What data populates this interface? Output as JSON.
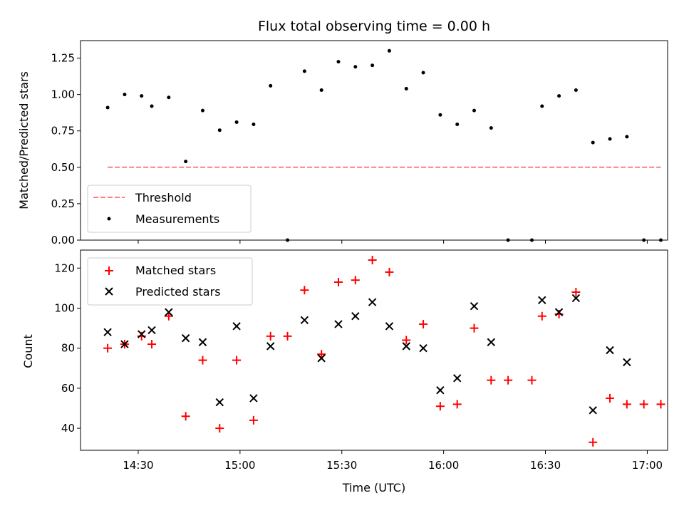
{
  "chart_data": [
    {
      "type": "scatter",
      "title": "Flux total observing time = 0.00 h",
      "xlabel": "",
      "ylabel": "Matched/Predicted stars",
      "xlim": [
        "14:13",
        "17:06"
      ],
      "ylim": [
        0,
        1.37
      ],
      "yticks": [
        "0.00",
        "0.25",
        "0.50",
        "0.75",
        "1.00",
        "1.25"
      ],
      "threshold": {
        "name": "Threshold",
        "value": 0.5,
        "x_start": "14:21",
        "x_end": "17:04",
        "color": "#ff7f7f"
      },
      "series": [
        {
          "name": "Measurements",
          "color": "#000000",
          "points": [
            [
              "14:21",
              0.91
            ],
            [
              "14:26",
              1.0
            ],
            [
              "14:31",
              0.99
            ],
            [
              "14:34",
              0.92
            ],
            [
              "14:39",
              0.98
            ],
            [
              "14:44",
              0.54
            ],
            [
              "14:49",
              0.89
            ],
            [
              "14:54",
              0.755
            ],
            [
              "14:59",
              0.81
            ],
            [
              "15:04",
              0.795
            ],
            [
              "15:09",
              1.06
            ],
            [
              "15:14",
              0.0
            ],
            [
              "15:19",
              1.16
            ],
            [
              "15:24",
              1.03
            ],
            [
              "15:29",
              1.225
            ],
            [
              "15:34",
              1.19
            ],
            [
              "15:39",
              1.2
            ],
            [
              "15:44",
              1.3
            ],
            [
              "15:49",
              1.04
            ],
            [
              "15:54",
              1.15
            ],
            [
              "15:59",
              0.86
            ],
            [
              "16:04",
              0.795
            ],
            [
              "16:09",
              0.89
            ],
            [
              "16:14",
              0.77
            ],
            [
              "16:19",
              0.0
            ],
            [
              "16:26",
              0.0
            ],
            [
              "16:29",
              0.92
            ],
            [
              "16:34",
              0.99
            ],
            [
              "16:39",
              1.03
            ],
            [
              "16:44",
              0.67
            ],
            [
              "16:49",
              0.695
            ],
            [
              "16:54",
              0.71
            ],
            [
              "16:59",
              0.0
            ],
            [
              "17:04",
              0.0
            ]
          ]
        }
      ],
      "legend": [
        "Threshold",
        "Measurements"
      ],
      "legend_position": "lower-left"
    },
    {
      "type": "scatter",
      "title": "",
      "xlabel": "Time (UTC)",
      "ylabel": "Count",
      "xlim": [
        "14:13",
        "17:06"
      ],
      "ylim": [
        29,
        129
      ],
      "xticks": [
        "14:30",
        "15:00",
        "15:30",
        "16:00",
        "16:30",
        "17:00"
      ],
      "yticks": [
        "40",
        "60",
        "80",
        "100",
        "120"
      ],
      "series": [
        {
          "name": "Matched stars",
          "marker": "plus",
          "color": "#ff0000",
          "points": [
            [
              "14:21",
              80
            ],
            [
              "14:26",
              82
            ],
            [
              "14:31",
              86
            ],
            [
              "14:34",
              82
            ],
            [
              "14:39",
              96
            ],
            [
              "14:44",
              46
            ],
            [
              "14:49",
              74
            ],
            [
              "14:54",
              40
            ],
            [
              "14:59",
              74
            ],
            [
              "15:04",
              44
            ],
            [
              "15:09",
              86
            ],
            [
              "15:14",
              86
            ],
            [
              "15:19",
              109
            ],
            [
              "15:24",
              77
            ],
            [
              "15:29",
              113
            ],
            [
              "15:34",
              114
            ],
            [
              "15:39",
              124
            ],
            [
              "15:44",
              118
            ],
            [
              "15:49",
              84
            ],
            [
              "15:54",
              92
            ],
            [
              "15:59",
              51
            ],
            [
              "16:04",
              52
            ],
            [
              "16:09",
              90
            ],
            [
              "16:14",
              64
            ],
            [
              "16:19",
              64
            ],
            [
              "16:26",
              64
            ],
            [
              "16:29",
              96
            ],
            [
              "16:34",
              97
            ],
            [
              "16:39",
              108
            ],
            [
              "16:44",
              33
            ],
            [
              "16:49",
              55
            ],
            [
              "16:54",
              52
            ],
            [
              "16:59",
              52
            ],
            [
              "17:04",
              52
            ]
          ]
        },
        {
          "name": "Predicted stars",
          "marker": "x",
          "color": "#000000",
          "points": [
            [
              "14:21",
              88
            ],
            [
              "14:26",
              82
            ],
            [
              "14:31",
              87
            ],
            [
              "14:34",
              89
            ],
            [
              "14:39",
              98
            ],
            [
              "14:44",
              85
            ],
            [
              "14:49",
              83
            ],
            [
              "14:54",
              53
            ],
            [
              "14:59",
              91
            ],
            [
              "15:04",
              55
            ],
            [
              "15:09",
              81
            ],
            [
              "15:19",
              94
            ],
            [
              "15:24",
              75
            ],
            [
              "15:29",
              92
            ],
            [
              "15:34",
              96
            ],
            [
              "15:39",
              103
            ],
            [
              "15:44",
              91
            ],
            [
              "15:49",
              81
            ],
            [
              "15:54",
              80
            ],
            [
              "15:59",
              59
            ],
            [
              "16:04",
              65
            ],
            [
              "16:09",
              101
            ],
            [
              "16:14",
              83
            ],
            [
              "16:29",
              104
            ],
            [
              "16:34",
              98
            ],
            [
              "16:39",
              105
            ],
            [
              "16:44",
              49
            ],
            [
              "16:49",
              79
            ],
            [
              "16:54",
              73
            ]
          ]
        }
      ],
      "legend": [
        "Matched stars",
        "Predicted stars"
      ],
      "legend_position": "upper-left"
    }
  ]
}
